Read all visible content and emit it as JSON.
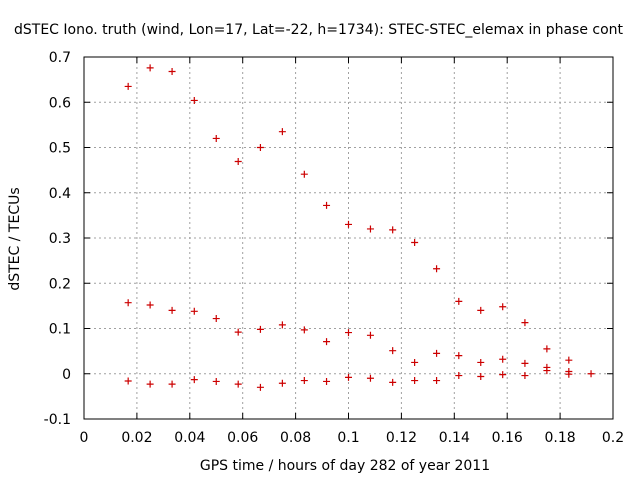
{
  "chart_data": {
    "type": "scatter",
    "title": "dSTEC Iono. truth (wind, Lon=17, Lat=-22, h=1734): STEC-STEC_elemax in phase cont",
    "xlabel": "GPS time / hours of day 282 of year 2011",
    "ylabel": "dSTEC  / TECUs",
    "xlim": [
      0,
      0.2
    ],
    "ylim": [
      -0.1,
      0.7
    ],
    "xticks": [
      "0",
      "0.02",
      "0.04",
      "0.06",
      "0.08",
      "0.1",
      "0.12",
      "0.14",
      "0.16",
      "0.18",
      "0.2"
    ],
    "yticks": [
      "-0.1",
      "0",
      "0.1",
      "0.2",
      "0.3",
      "0.4",
      "0.5",
      "0.6",
      "0.7"
    ],
    "grid": true,
    "marker": "plus",
    "color": "#cc0000",
    "series": [
      {
        "x": [
          0.0167,
          0.025,
          0.0333,
          0.0417,
          0.05,
          0.0583,
          0.0667,
          0.075,
          0.0833,
          0.0917,
          0.1,
          0.1083,
          0.1167,
          0.125,
          0.1333,
          0.1417,
          0.15,
          0.1583,
          0.1667,
          0.175,
          0.1833
        ],
        "y": [
          0.635,
          0.676,
          0.668,
          0.604,
          0.52,
          0.469,
          0.5,
          0.535,
          0.441,
          0.372,
          0.33,
          0.32,
          0.318,
          0.29,
          0.232,
          0.16,
          0.14,
          0.148,
          0.113,
          0.055,
          0.03
        ]
      },
      {
        "x": [
          0.0167,
          0.025,
          0.0333,
          0.0417,
          0.05,
          0.0583,
          0.0667,
          0.075,
          0.0833,
          0.0917,
          0.1,
          0.1083,
          0.1167,
          0.125,
          0.1333,
          0.1417,
          0.15,
          0.1583,
          0.1667,
          0.175,
          0.1833
        ],
        "y": [
          0.157,
          0.152,
          0.14,
          0.138,
          0.122,
          0.092,
          0.098,
          0.108,
          0.097,
          0.071,
          0.091,
          0.085,
          0.051,
          0.025,
          0.045,
          0.04,
          0.025,
          0.032,
          0.023,
          0.014,
          0.005
        ]
      },
      {
        "x": [
          0.0167,
          0.025,
          0.0333,
          0.0417,
          0.05,
          0.0583,
          0.0667,
          0.075,
          0.0833,
          0.0917,
          0.1,
          0.1083,
          0.1167,
          0.125,
          0.1333,
          0.1417,
          0.15,
          0.1583,
          0.1667,
          0.175,
          0.1833,
          0.1917
        ],
        "y": [
          -0.016,
          -0.023,
          -0.023,
          -0.013,
          -0.017,
          -0.023,
          -0.03,
          -0.021,
          -0.015,
          -0.017,
          -0.008,
          -0.01,
          -0.019,
          -0.015,
          -0.015,
          -0.004,
          -0.006,
          -0.002,
          -0.004,
          0.007,
          -0.001,
          0.0
        ]
      }
    ]
  }
}
